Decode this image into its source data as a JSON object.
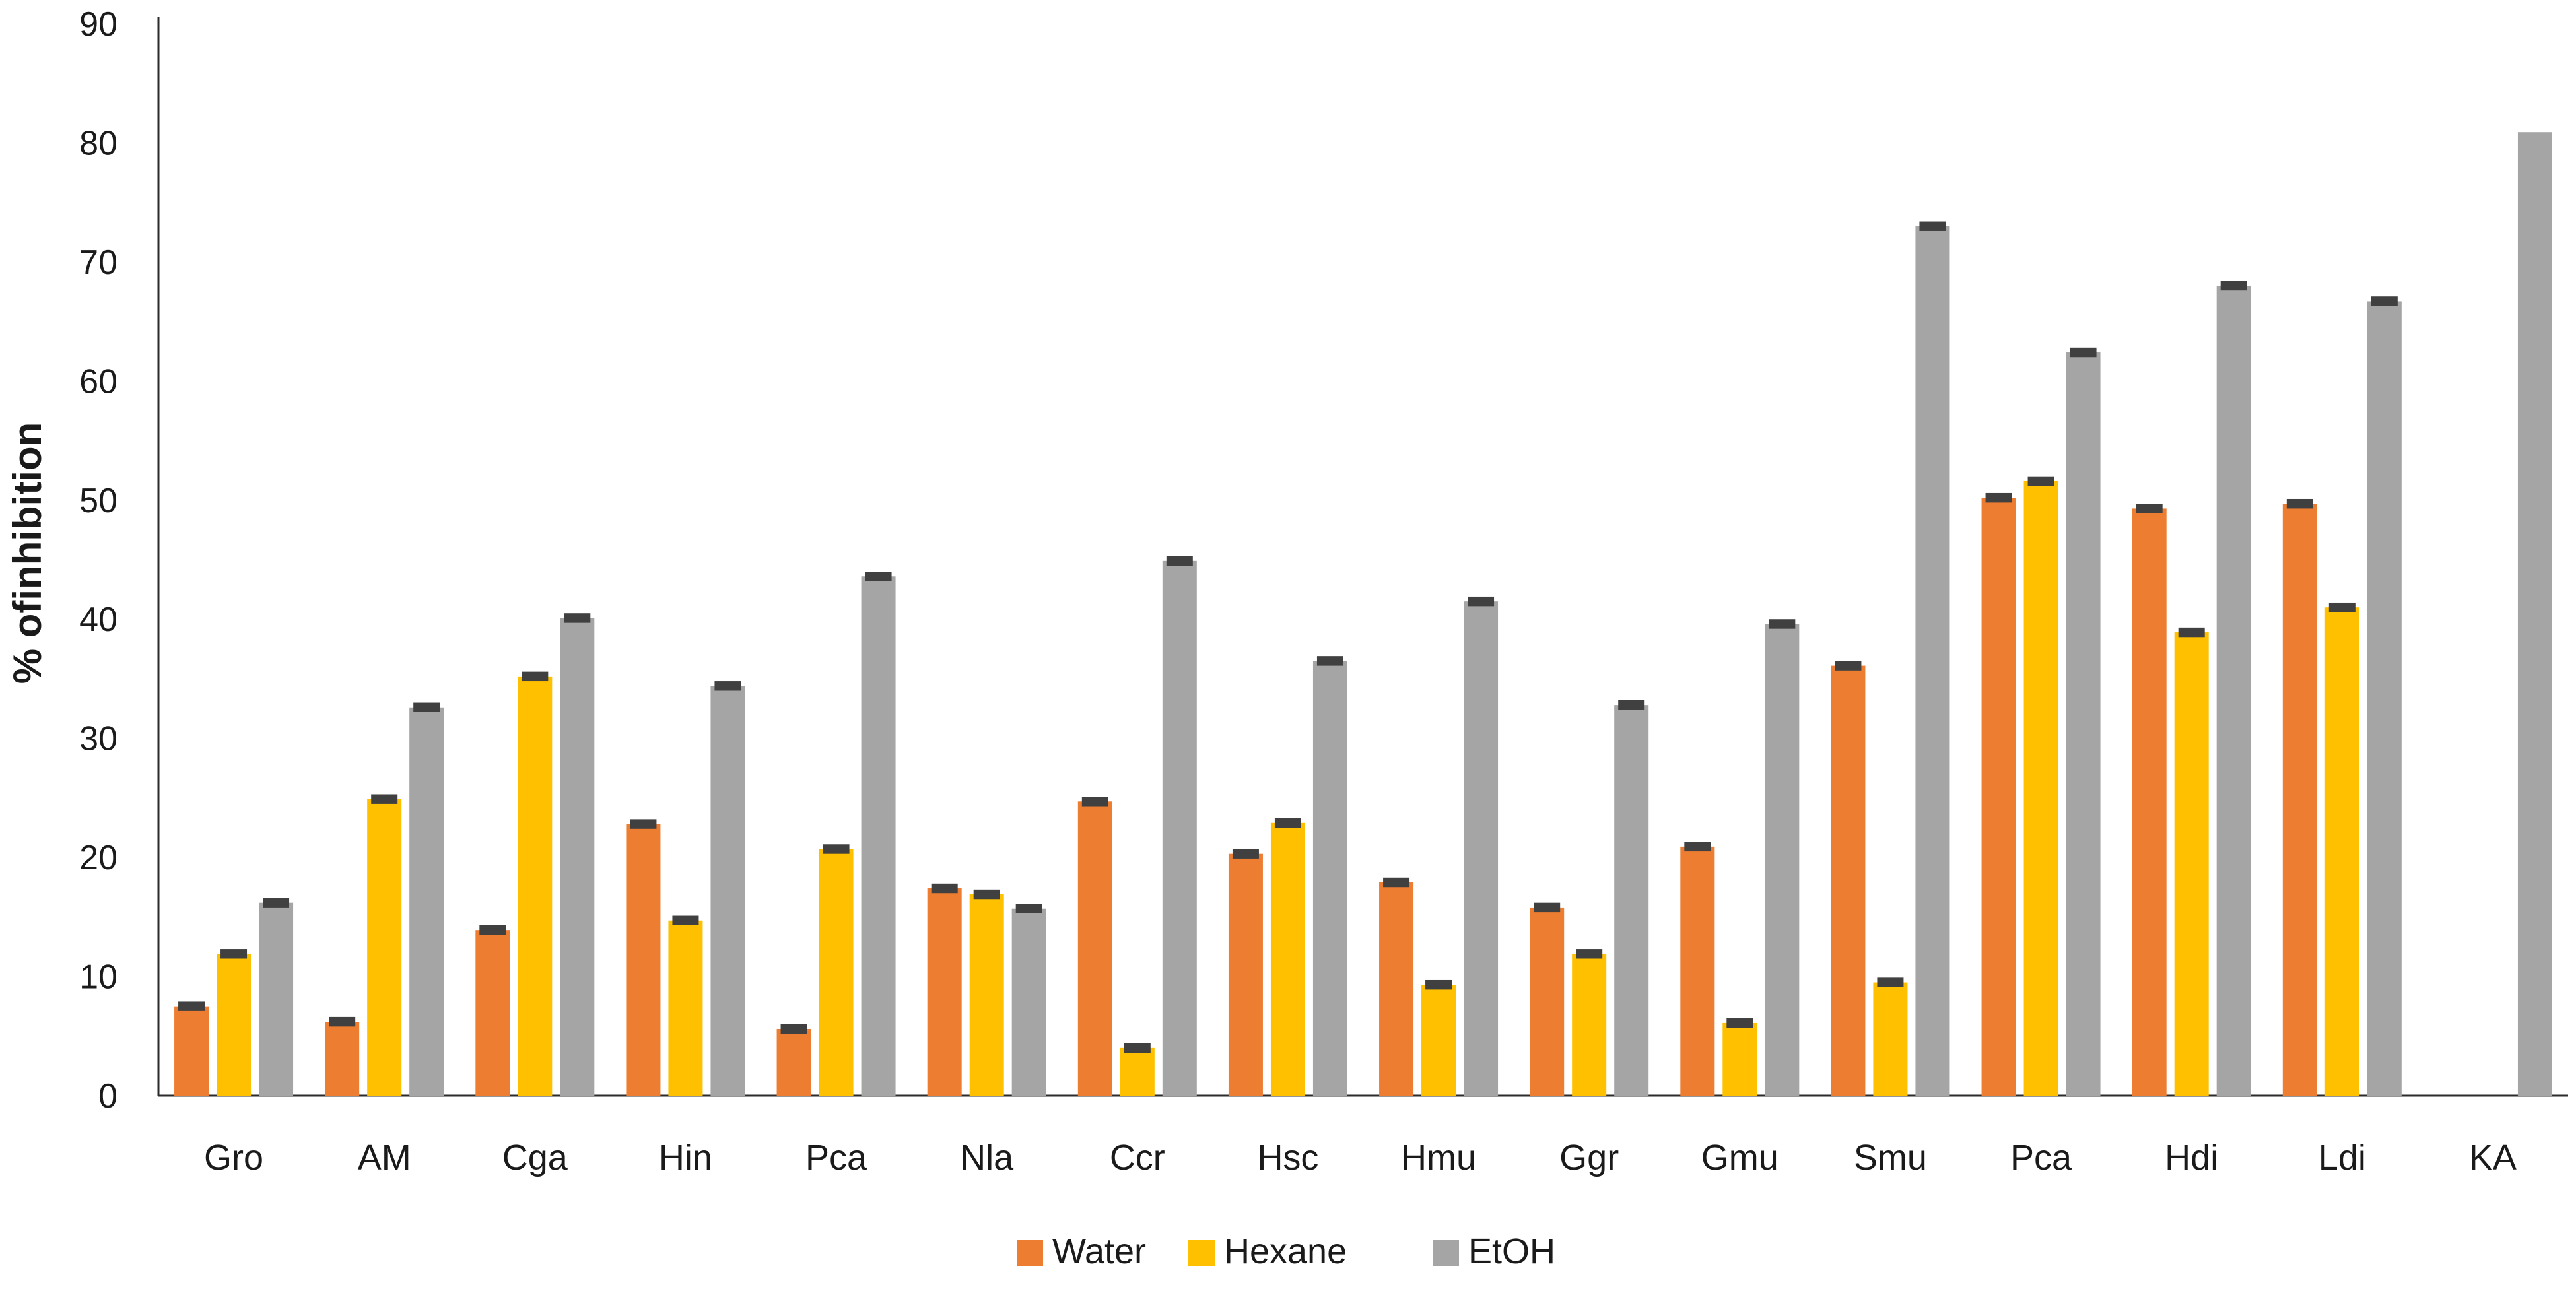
{
  "chart_data": {
    "type": "bar",
    "title": "",
    "xlabel": "",
    "ylabel": "% ofinhibition",
    "ylim": [
      0,
      90
    ],
    "yticks": [
      0,
      10,
      20,
      30,
      40,
      50,
      60,
      70,
      80,
      90
    ],
    "grid": false,
    "legend_position": "bottom-center",
    "categories": [
      "Gro",
      "AM",
      "Cga",
      "Hin",
      "Pca",
      "Nla",
      "Ccr",
      "Hsc",
      "Hmu",
      "Ggr",
      "Gmu",
      "Smu",
      "Pca",
      "Hdi",
      "Ldi",
      "KA"
    ],
    "series": [
      {
        "name": "Water",
        "color": "#ED7D31",
        "values": [
          7.5,
          6.2,
          13.9,
          22.8,
          5.6,
          17.4,
          24.7,
          20.3,
          17.9,
          15.8,
          20.9,
          36.1,
          50.2,
          49.3,
          49.7,
          null
        ],
        "errors": [
          0.4,
          0.4,
          0.4,
          0.4,
          0.4,
          0.4,
          0.4,
          0.4,
          0.4,
          0.4,
          0.4,
          0.4,
          0.4,
          0.4,
          0.4,
          null
        ]
      },
      {
        "name": "Hexane",
        "color": "#FFC000",
        "values": [
          11.9,
          24.9,
          35.2,
          14.7,
          20.7,
          16.9,
          4.0,
          22.9,
          9.3,
          11.9,
          6.1,
          9.5,
          51.6,
          38.9,
          41.0,
          null
        ],
        "errors": [
          0.4,
          0.4,
          0.4,
          0.4,
          0.4,
          0.4,
          0.4,
          0.4,
          0.4,
          0.4,
          0.4,
          0.4,
          0.4,
          0.4,
          0.4,
          null
        ]
      },
      {
        "name": "EtOH",
        "color": "#A5A5A5",
        "values": [
          16.2,
          32.6,
          40.1,
          34.4,
          43.6,
          15.7,
          44.9,
          36.5,
          41.5,
          32.8,
          39.6,
          73.0,
          62.4,
          68.0,
          66.7,
          80.9
        ],
        "errors": [
          0.4,
          0.4,
          0.4,
          0.4,
          0.4,
          0.4,
          0.4,
          0.4,
          0.4,
          0.4,
          0.4,
          0.4,
          0.4,
          0.4,
          0.4,
          0
        ]
      }
    ],
    "error_bar_color": "#404040"
  }
}
